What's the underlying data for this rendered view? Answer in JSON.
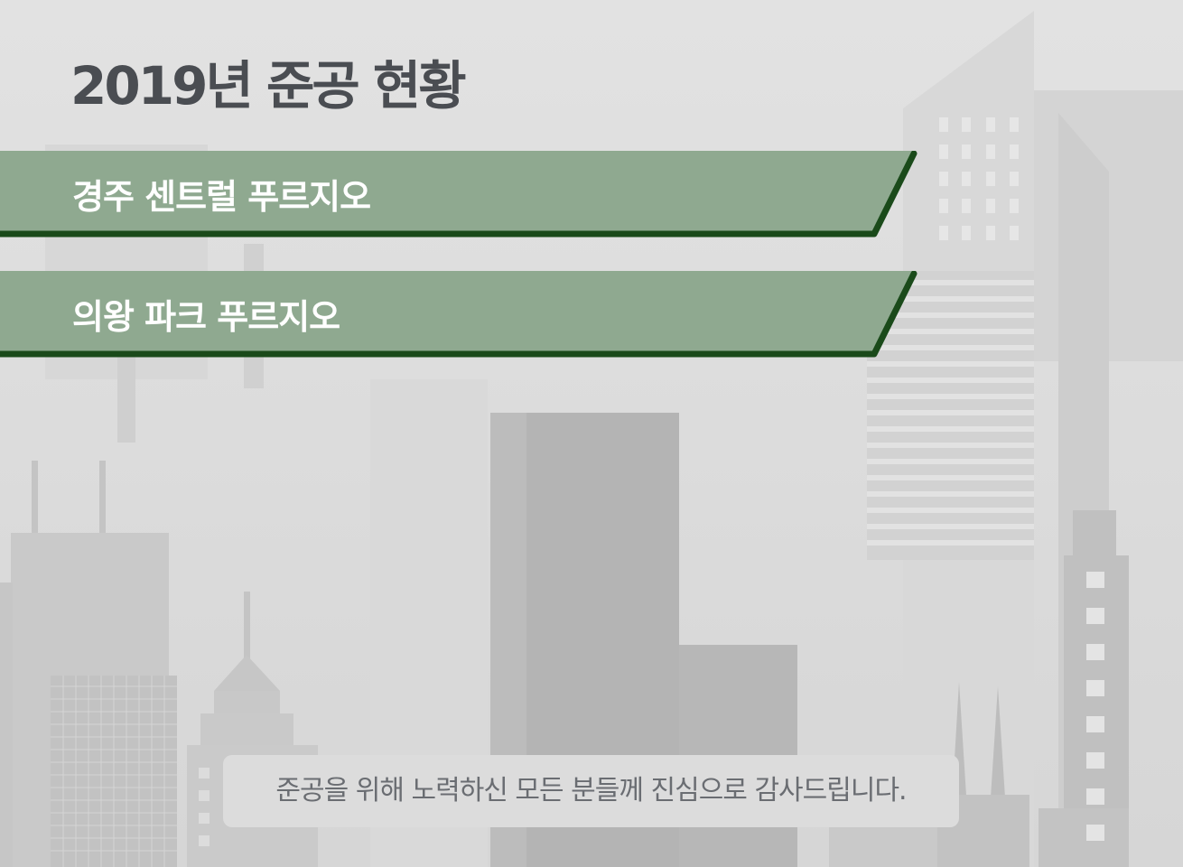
{
  "title": "2019년 준공 현황",
  "projects": [
    {
      "label": "경주 센트럴 푸르지오"
    },
    {
      "label": "의왕 파크 푸르지오"
    }
  ],
  "caption": "준공을 위해 노력하신 모든 분들께 진심으로 감사드립니다.",
  "colors": {
    "banner_fill": "#8fa990",
    "banner_edge": "#1a4a1a",
    "title_text": "#4a4d52",
    "caption_bg": "#dcdcdc",
    "caption_text": "#6a6d72"
  }
}
